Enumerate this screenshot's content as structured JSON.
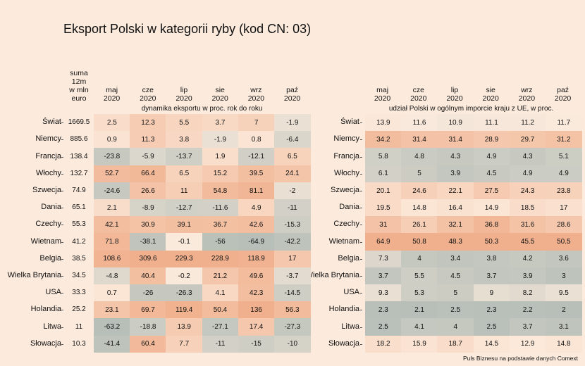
{
  "title": "Eksport Polski w kategorii ryby (kod CN: 03)",
  "source": "Puls Biznesu na podstawie danych Comext",
  "chart_data": {
    "type": "heatmap",
    "rows": [
      "Świat",
      "Niemcy",
      "Francja",
      "Włochy",
      "Szwecja",
      "Dania",
      "Czechy",
      "Wietnam",
      "Belgia",
      "Wielka Brytania",
      "USA",
      "Holandia",
      "Litwa",
      "Słowacja"
    ],
    "sum_header": "suma 12m w mln euro",
    "sum_values": [
      "1669.5",
      "885.6",
      "138.4",
      "132.7",
      "74.9",
      "65.1",
      "55.3",
      "41.2",
      "38.5",
      "34.5",
      "33.3",
      "25.2",
      "11",
      "10.3"
    ],
    "months": [
      "maj 2020",
      "cze 2020",
      "lip 2020",
      "sie 2020",
      "wrz 2020",
      "paź 2020"
    ],
    "left_subtitle": "dynamika eksportu w proc. rok do roku",
    "right_subtitle": "udział Polski w ogólnym imporcie kraju z UE, w proc.",
    "dynamics": [
      [
        "2.5",
        "12.3",
        "5.5",
        "3.7",
        "7",
        "-1.9"
      ],
      [
        "0.9",
        "11.3",
        "3.8",
        "-1.9",
        "0.8",
        "-6.4"
      ],
      [
        "-23.8",
        "-5.9",
        "-13.7",
        "1.9",
        "-12.1",
        "6.5"
      ],
      [
        "52.7",
        "66.4",
        "6.5",
        "15.2",
        "39.5",
        "24.1"
      ],
      [
        "-24.6",
        "26.6",
        "11",
        "54.8",
        "81.1",
        "-2"
      ],
      [
        "2.1",
        "-8.9",
        "-12.7",
        "-11.6",
        "4.9",
        "-11"
      ],
      [
        "42.1",
        "30.9",
        "39.1",
        "36.7",
        "42.6",
        "-15.3"
      ],
      [
        "71.8",
        "-38.1",
        "-0.1",
        "-56",
        "-64.9",
        "-42.2"
      ],
      [
        "108.6",
        "309.6",
        "229.3",
        "228.9",
        "118.9",
        "17"
      ],
      [
        "-4.8",
        "40.4",
        "-0.2",
        "21.2",
        "49.6",
        "-3.7"
      ],
      [
        "0.7",
        "-26",
        "-26.3",
        "4.1",
        "42.3",
        "-14.5"
      ],
      [
        "23.1",
        "69.7",
        "119.4",
        "50.4",
        "136",
        "56.3"
      ],
      [
        "-63.2",
        "-18.8",
        "13.9",
        "-27.1",
        "17.4",
        "-27.3"
      ],
      [
        "-41.4",
        "60.4",
        "7.7",
        "-11",
        "-15",
        "-10"
      ]
    ],
    "shares": [
      [
        "13.9",
        "11.6",
        "10.9",
        "11.1",
        "11.2",
        "11.7"
      ],
      [
        "34.2",
        "31.4",
        "31.4",
        "28.9",
        "29.7",
        "31.2"
      ],
      [
        "5.8",
        "4.8",
        "4.3",
        "4.9",
        "4.3",
        "5.1"
      ],
      [
        "6.1",
        "5",
        "3.9",
        "4.5",
        "4.9",
        "4.9"
      ],
      [
        "20.1",
        "24.6",
        "22.1",
        "27.5",
        "24.3",
        "23.8"
      ],
      [
        "19.5",
        "14.8",
        "16.4",
        "14.9",
        "18.5",
        "17"
      ],
      [
        "31",
        "26.1",
        "32.1",
        "36.8",
        "31.6",
        "28.6"
      ],
      [
        "64.9",
        "50.8",
        "48.3",
        "50.3",
        "45.5",
        "50.5"
      ],
      [
        "7.3",
        "4",
        "3.4",
        "3.8",
        "4.2",
        "3.6"
      ],
      [
        "3.7",
        "5.5",
        "4.5",
        "3.7",
        "3.9",
        "3"
      ],
      [
        "9.3",
        "5.3",
        "5",
        "9",
        "8.2",
        "9.5"
      ],
      [
        "2.3",
        "2.1",
        "2.5",
        "2.3",
        "2.2",
        "2"
      ],
      [
        "2.5",
        "4.1",
        "4",
        "2.5",
        "3.7",
        "3.1"
      ],
      [
        "18.2",
        "15.9",
        "18.7",
        "14.5",
        "12.9",
        "14.8"
      ]
    ],
    "colors": {
      "low": "#b7bfb8",
      "mid": "#fcebdd",
      "high": "#f0b08d"
    }
  }
}
